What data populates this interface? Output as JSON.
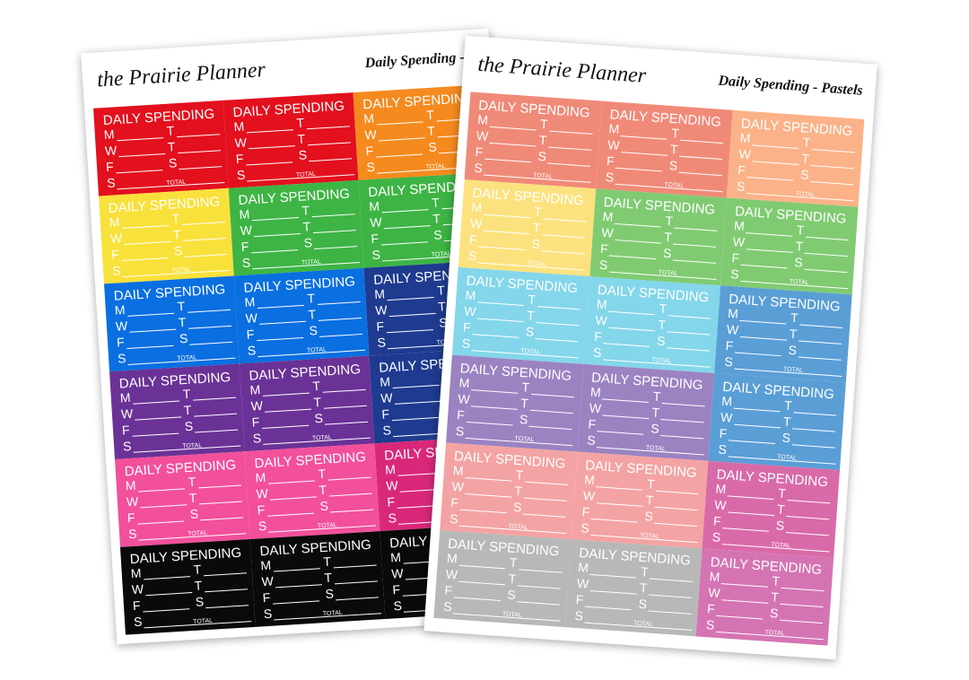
{
  "sheets": [
    {
      "brand": "the Prairie Planner",
      "title": "Daily Spending - B",
      "colors": [
        [
          "#e3101e",
          "#e3101e",
          "#f58a1f"
        ],
        [
          "#f9e13b",
          "#3eb445",
          "#3eb445"
        ],
        [
          "#0a6fe0",
          "#0a6fe0",
          "#1f3b8f"
        ],
        [
          "#6a3296",
          "#6a3296",
          "#1f3b8f"
        ],
        [
          "#f2509b",
          "#f2509b",
          "#d9287a"
        ],
        [
          "#0a0a0a",
          "#0a0a0a",
          "#0a0a0a"
        ]
      ]
    },
    {
      "brand": "the Prairie Planner",
      "title": "Daily Spending - Pastels",
      "colors": [
        [
          "#f08a78",
          "#f08a78",
          "#fbb288"
        ],
        [
          "#fbe27e",
          "#80cb72",
          "#80cb72"
        ],
        [
          "#84d6ea",
          "#84d6ea",
          "#5a9ed6"
        ],
        [
          "#9b83c2",
          "#9b83c2",
          "#5a9ed6"
        ],
        [
          "#f3a3a3",
          "#f3a3a3",
          "#d96aa8"
        ],
        [
          "#b8b8b8",
          "#b8b8b8",
          "#d574b3"
        ]
      ]
    }
  ],
  "sticker": {
    "title": "DAILY SPENDING",
    "days": [
      "M",
      "T",
      "W",
      "T",
      "F",
      "S",
      "S"
    ],
    "total": "TOTAL"
  }
}
